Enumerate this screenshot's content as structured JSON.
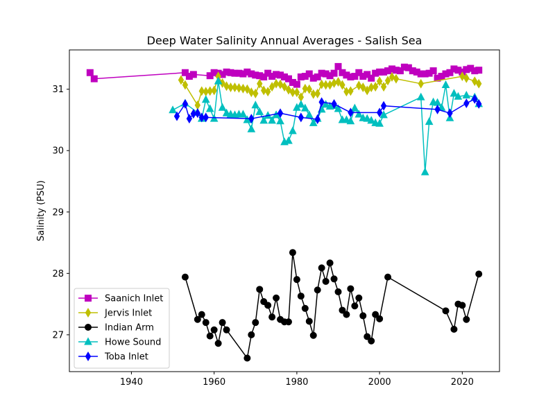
{
  "chart_data": {
    "type": "line",
    "title": "Deep Water Salinity Annual Averages - Salish Sea",
    "xlabel": "",
    "ylabel": "Salinity (PSU)",
    "xlim": [
      1925,
      2029
    ],
    "ylim": [
      26.4,
      31.64
    ],
    "xticks": [
      1940,
      1960,
      1980,
      2000,
      2020
    ],
    "yticks": [
      27,
      28,
      29,
      30,
      31
    ],
    "grid": false,
    "legend_position": "lower-left",
    "series": [
      {
        "name": "Saanich Inlet",
        "color": "#bf00bf",
        "marker": "square",
        "points": [
          [
            1930,
            31.27
          ],
          [
            1931,
            31.17
          ],
          [
            1953,
            31.27
          ],
          [
            1954,
            31.21
          ],
          [
            1955,
            31.24
          ],
          [
            1959,
            31.22
          ],
          [
            1960,
            31.27
          ],
          [
            1961,
            31.26
          ],
          [
            1962,
            31.24
          ],
          [
            1963,
            31.28
          ],
          [
            1964,
            31.27
          ],
          [
            1965,
            31.26
          ],
          [
            1966,
            31.26
          ],
          [
            1967,
            31.25
          ],
          [
            1968,
            31.28
          ],
          [
            1969,
            31.25
          ],
          [
            1970,
            31.23
          ],
          [
            1971,
            31.22
          ],
          [
            1972,
            31.2
          ],
          [
            1973,
            31.26
          ],
          [
            1974,
            31.21
          ],
          [
            1975,
            31.24
          ],
          [
            1976,
            31.23
          ],
          [
            1977,
            31.2
          ],
          [
            1978,
            31.17
          ],
          [
            1979,
            31.11
          ],
          [
            1980,
            31.08
          ],
          [
            1981,
            31.2
          ],
          [
            1982,
            31.21
          ],
          [
            1983,
            31.25
          ],
          [
            1984,
            31.18
          ],
          [
            1985,
            31.2
          ],
          [
            1986,
            31.26
          ],
          [
            1987,
            31.25
          ],
          [
            1988,
            31.22
          ],
          [
            1989,
            31.26
          ],
          [
            1990,
            31.37
          ],
          [
            1991,
            31.27
          ],
          [
            1992,
            31.23
          ],
          [
            1993,
            31.2
          ],
          [
            1994,
            31.21
          ],
          [
            1995,
            31.27
          ],
          [
            1996,
            31.21
          ],
          [
            1997,
            31.24
          ],
          [
            1998,
            31.18
          ],
          [
            1999,
            31.26
          ],
          [
            2000,
            31.28
          ],
          [
            2001,
            31.28
          ],
          [
            2002,
            31.3
          ],
          [
            2003,
            31.33
          ],
          [
            2004,
            31.31
          ],
          [
            2005,
            31.3
          ],
          [
            2006,
            31.36
          ],
          [
            2007,
            31.35
          ],
          [
            2008,
            31.3
          ],
          [
            2009,
            31.28
          ],
          [
            2010,
            31.25
          ],
          [
            2011,
            31.25
          ],
          [
            2012,
            31.26
          ],
          [
            2013,
            31.3
          ],
          [
            2014,
            31.18
          ],
          [
            2015,
            31.21
          ],
          [
            2016,
            31.25
          ],
          [
            2017,
            31.27
          ],
          [
            2018,
            31.33
          ],
          [
            2019,
            31.31
          ],
          [
            2020,
            31.28
          ],
          [
            2021,
            31.32
          ],
          [
            2022,
            31.34
          ],
          [
            2023,
            31.3
          ],
          [
            2024,
            31.31
          ]
        ]
      },
      {
        "name": "Jervis Inlet",
        "color": "#bfbf00",
        "marker": "thin_diamond",
        "points": [
          [
            1952,
            31.15
          ],
          [
            1953,
            31.07
          ],
          [
            1956,
            30.74
          ],
          [
            1957,
            30.97
          ],
          [
            1958,
            30.96
          ],
          [
            1959,
            30.97
          ],
          [
            1960,
            30.98
          ],
          [
            1961,
            31.21
          ],
          [
            1962,
            31.1
          ],
          [
            1963,
            31.05
          ],
          [
            1964,
            31.03
          ],
          [
            1965,
            31.03
          ],
          [
            1966,
            31.02
          ],
          [
            1967,
            31.01
          ],
          [
            1968,
            31.0
          ],
          [
            1969,
            30.95
          ],
          [
            1970,
            30.93
          ],
          [
            1971,
            31.09
          ],
          [
            1972,
            30.98
          ],
          [
            1973,
            30.96
          ],
          [
            1974,
            31.04
          ],
          [
            1975,
            31.09
          ],
          [
            1976,
            31.08
          ],
          [
            1977,
            31.04
          ],
          [
            1978,
            30.99
          ],
          [
            1979,
            30.95
          ],
          [
            1980,
            30.95
          ],
          [
            1981,
            30.87
          ],
          [
            1982,
            31.01
          ],
          [
            1983,
            31.0
          ],
          [
            1984,
            30.92
          ],
          [
            1985,
            30.93
          ],
          [
            1986,
            31.08
          ],
          [
            1987,
            31.07
          ],
          [
            1988,
            31.07
          ],
          [
            1989,
            31.1
          ],
          [
            1990,
            31.12
          ],
          [
            1991,
            31.07
          ],
          [
            1992,
            30.96
          ],
          [
            1993,
            30.97
          ],
          [
            1995,
            31.06
          ],
          [
            1996,
            31.03
          ],
          [
            1997,
            30.98
          ],
          [
            1998,
            31.03
          ],
          [
            1999,
            31.04
          ],
          [
            2000,
            31.13
          ],
          [
            2001,
            31.04
          ],
          [
            2002,
            31.14
          ],
          [
            2003,
            31.2
          ],
          [
            2004,
            31.17
          ],
          [
            2010,
            31.09
          ],
          [
            2020,
            31.21
          ],
          [
            2021,
            31.18
          ],
          [
            2023,
            31.13
          ],
          [
            2024,
            31.09
          ]
        ]
      },
      {
        "name": "Indian Arm",
        "color": "#000000",
        "marker": "circle",
        "points": [
          [
            1953,
            27.94
          ],
          [
            1956,
            27.25
          ],
          [
            1957,
            27.33
          ],
          [
            1958,
            27.2
          ],
          [
            1959,
            26.98
          ],
          [
            1960,
            27.08
          ],
          [
            1961,
            26.86
          ],
          [
            1962,
            27.2
          ],
          [
            1963,
            27.08
          ],
          [
            1968,
            26.62
          ],
          [
            1969,
            27.0
          ],
          [
            1970,
            27.2
          ],
          [
            1971,
            27.74
          ],
          [
            1972,
            27.54
          ],
          [
            1973,
            27.48
          ],
          [
            1974,
            27.29
          ],
          [
            1975,
            27.6
          ],
          [
            1976,
            27.25
          ],
          [
            1977,
            27.21
          ],
          [
            1978,
            27.21
          ],
          [
            1979,
            28.34
          ],
          [
            1980,
            27.9
          ],
          [
            1981,
            27.63
          ],
          [
            1982,
            27.43
          ],
          [
            1983,
            27.22
          ],
          [
            1984,
            26.99
          ],
          [
            1985,
            27.73
          ],
          [
            1986,
            28.09
          ],
          [
            1987,
            27.87
          ],
          [
            1988,
            28.17
          ],
          [
            1989,
            27.91
          ],
          [
            1990,
            27.7
          ],
          [
            1991,
            27.4
          ],
          [
            1992,
            27.33
          ],
          [
            1993,
            27.75
          ],
          [
            1994,
            27.47
          ],
          [
            1995,
            27.6
          ],
          [
            1996,
            27.31
          ],
          [
            1997,
            26.97
          ],
          [
            1998,
            26.9
          ],
          [
            1999,
            27.33
          ],
          [
            2000,
            27.26
          ],
          [
            2002,
            27.94
          ],
          [
            2016,
            27.39
          ],
          [
            2018,
            27.09
          ],
          [
            2019,
            27.5
          ],
          [
            2020,
            27.48
          ],
          [
            2021,
            27.25
          ],
          [
            2024,
            27.99
          ]
        ]
      },
      {
        "name": "Howe Sound",
        "color": "#00bfbf",
        "marker": "triangle_up",
        "points": [
          [
            1950,
            30.66
          ],
          [
            1953,
            30.77
          ],
          [
            1956,
            30.62
          ],
          [
            1957,
            30.52
          ],
          [
            1958,
            30.83
          ],
          [
            1959,
            30.68
          ],
          [
            1960,
            30.52
          ],
          [
            1961,
            31.13
          ],
          [
            1962,
            30.7
          ],
          [
            1963,
            30.61
          ],
          [
            1964,
            30.59
          ],
          [
            1965,
            30.58
          ],
          [
            1966,
            30.59
          ],
          [
            1967,
            30.59
          ],
          [
            1968,
            30.5
          ],
          [
            1969,
            30.35
          ],
          [
            1970,
            30.74
          ],
          [
            1971,
            30.63
          ],
          [
            1972,
            30.49
          ],
          [
            1973,
            30.57
          ],
          [
            1974,
            30.49
          ],
          [
            1975,
            30.58
          ],
          [
            1976,
            30.48
          ],
          [
            1977,
            30.14
          ],
          [
            1978,
            30.16
          ],
          [
            1979,
            30.32
          ],
          [
            1980,
            30.7
          ],
          [
            1981,
            30.75
          ],
          [
            1982,
            30.69
          ],
          [
            1983,
            30.58
          ],
          [
            1984,
            30.45
          ],
          [
            1985,
            30.52
          ],
          [
            1986,
            30.67
          ],
          [
            1987,
            30.75
          ],
          [
            1988,
            30.72
          ],
          [
            1989,
            30.73
          ],
          [
            1990,
            30.68
          ],
          [
            1991,
            30.5
          ],
          [
            1992,
            30.5
          ],
          [
            1993,
            30.48
          ],
          [
            1994,
            30.69
          ],
          [
            1995,
            30.59
          ],
          [
            1996,
            30.53
          ],
          [
            1997,
            30.52
          ],
          [
            1998,
            30.49
          ],
          [
            1999,
            30.45
          ],
          [
            2000,
            30.44
          ],
          [
            2001,
            30.58
          ],
          [
            2010,
            30.87
          ],
          [
            2011,
            29.65
          ],
          [
            2012,
            30.47
          ],
          [
            2013,
            30.79
          ],
          [
            2014,
            30.78
          ],
          [
            2015,
            30.7
          ],
          [
            2016,
            31.07
          ],
          [
            2017,
            30.53
          ],
          [
            2018,
            30.93
          ],
          [
            2019,
            30.88
          ],
          [
            2021,
            30.9
          ],
          [
            2023,
            30.87
          ],
          [
            2024,
            30.76
          ]
        ]
      },
      {
        "name": "Toba Inlet",
        "color": "#0000ff",
        "marker": "thin_diamond",
        "points": [
          [
            1951,
            30.56
          ],
          [
            1953,
            30.76
          ],
          [
            1954,
            30.52
          ],
          [
            1955,
            30.6
          ],
          [
            1956,
            30.61
          ],
          [
            1957,
            30.54
          ],
          [
            1958,
            30.54
          ],
          [
            1969,
            30.52
          ],
          [
            1976,
            30.61
          ],
          [
            1981,
            30.54
          ],
          [
            1985,
            30.51
          ],
          [
            1986,
            30.79
          ],
          [
            1989,
            30.76
          ],
          [
            1993,
            30.62
          ],
          [
            2000,
            30.62
          ],
          [
            2001,
            30.73
          ],
          [
            2014,
            30.67
          ],
          [
            2017,
            30.61
          ],
          [
            2021,
            30.77
          ],
          [
            2023,
            30.84
          ],
          [
            2024,
            30.76
          ]
        ]
      }
    ]
  }
}
